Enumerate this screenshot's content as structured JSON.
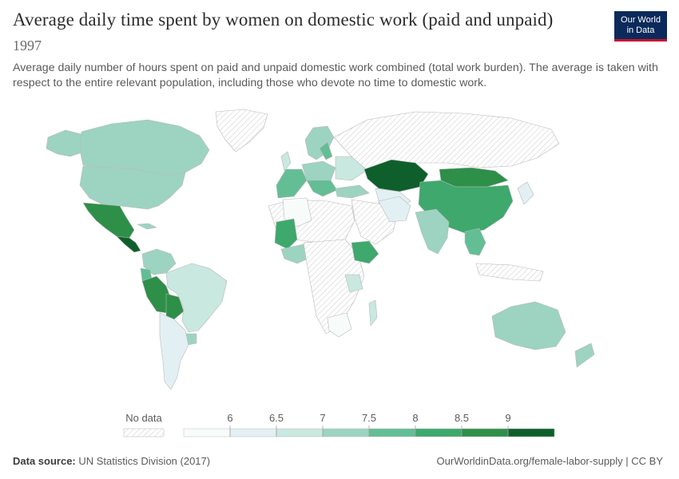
{
  "header": {
    "title": "Average daily time spent by women on domestic work (paid and unpaid)",
    "year": "1997",
    "subtitle": "Average daily number of hours spent on paid and unpaid domestic work combined (total work burden). The average is taken with respect to the entire relevant population, including those who devote no time to domestic work."
  },
  "logo": {
    "line1": "Our World",
    "line2": "in Data"
  },
  "legend": {
    "no_data_label": "No data",
    "ticks": [
      "6",
      "6.5",
      "7",
      "7.5",
      "8",
      "8.5",
      "9"
    ],
    "colors": [
      "#f7fcfb",
      "#e2f0f3",
      "#c9e8df",
      "#9dd3c1",
      "#63be95",
      "#3ea86d",
      "#2e8f49",
      "#0f5f2c"
    ]
  },
  "footer": {
    "source_label": "Data source:",
    "source": "UN Statistics Division (2017)",
    "url": "OurWorldinData.org/female-labor-supply | CC BY"
  }
}
